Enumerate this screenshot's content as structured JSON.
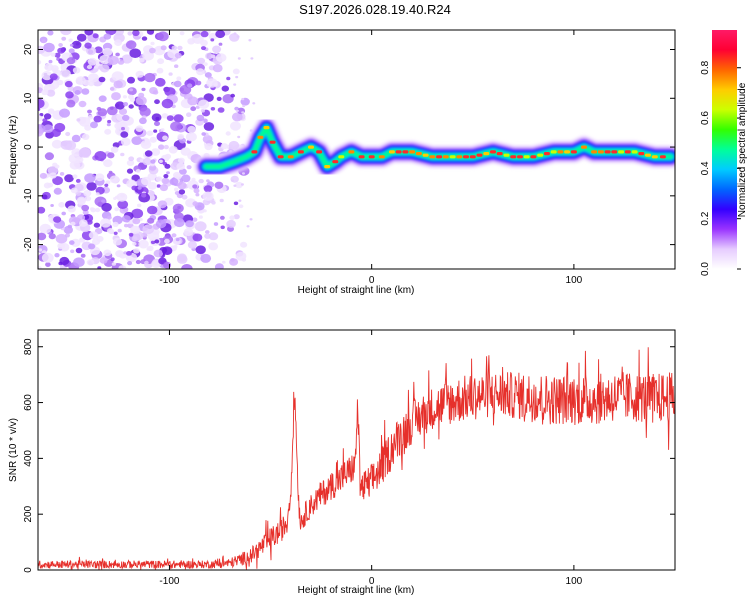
{
  "title": "S197.2026.028.19.40.R24",
  "chart_data": [
    {
      "type": "heatmap",
      "title": "S197.2026.028.19.40.R24",
      "xlabel": "Height of straight line (km)",
      "ylabel": "Frequency (Hz)",
      "xlim": [
        -165,
        150
      ],
      "ylim": [
        -25,
        24
      ],
      "xticks": [
        -100,
        0,
        100
      ],
      "yticks": [
        -20,
        -10,
        0,
        10,
        20
      ],
      "colorbar": {
        "label": "Normalized spectral amplitude",
        "range": [
          0.0,
          0.95
        ],
        "ticks": [
          "0.0",
          "0.2",
          "0.4",
          "0.6",
          "0.8"
        ],
        "colors": [
          "#ffffff",
          "#e6ccff",
          "#9933ff",
          "#3300ff",
          "#0066ff",
          "#00ccff",
          "#00ff99",
          "#33ff00",
          "#ccff00",
          "#ffcc00",
          "#ff6600",
          "#ff0033",
          "#ff1a66"
        ]
      },
      "ridge": {
        "x": [
          -82,
          -75,
          -68,
          -62,
          -58,
          -55,
          -52,
          -49,
          -45,
          -40,
          -35,
          -30,
          -26,
          -22,
          -18,
          -15,
          -10,
          -5,
          0,
          5,
          10,
          20,
          30,
          40,
          50,
          60,
          70,
          80,
          90,
          100,
          105,
          110,
          120,
          130,
          140,
          148
        ],
        "freq": [
          -4,
          -4,
          -3,
          -2,
          -1,
          2,
          4,
          1,
          -2,
          -2,
          -1,
          0,
          -1,
          -4,
          -3,
          -2,
          -1,
          -2,
          -2,
          -2,
          -1,
          -1,
          -2,
          -2,
          -2,
          -1,
          -2,
          -2,
          -1,
          -1,
          0,
          -1,
          -1,
          -1,
          -2,
          -2
        ]
      },
      "noise_region": [
        -165,
        -70
      ]
    },
    {
      "type": "line",
      "xlabel": "Height of straight line (km)",
      "ylabel": "SNR (10 * v/v)",
      "xlim": [
        -165,
        150
      ],
      "ylim": [
        0,
        860
      ],
      "xticks": [
        -100,
        0,
        100
      ],
      "yticks": [
        0,
        200,
        400,
        600,
        800
      ],
      "color": "#e6302b",
      "series": [
        {
          "name": "SNR",
          "x": [
            -165,
            -140,
            -120,
            -100,
            -80,
            -70,
            -60,
            -55,
            -50,
            -45,
            -42,
            -40,
            -39,
            -38,
            -37,
            -36,
            -35,
            -34,
            -30,
            -25,
            -20,
            -15,
            -10,
            -8,
            -7,
            -6,
            -5,
            -3,
            0,
            5,
            10,
            15,
            20,
            25,
            30,
            40,
            50,
            60,
            70,
            80,
            90,
            100,
            110,
            120,
            130,
            140,
            150
          ],
          "y": [
            20,
            20,
            20,
            20,
            20,
            25,
            50,
            80,
            110,
            140,
            170,
            280,
            480,
            640,
            420,
            230,
            170,
            190,
            230,
            270,
            300,
            330,
            360,
            380,
            600,
            390,
            290,
            300,
            320,
            370,
            440,
            490,
            530,
            555,
            580,
            605,
            620,
            630,
            625,
            620,
            610,
            610,
            610,
            620,
            620,
            615,
            620
          ],
          "noise_amp": [
            20,
            20,
            20,
            20,
            20,
            25,
            40,
            50,
            60,
            60,
            60,
            60,
            60,
            60,
            60,
            60,
            60,
            60,
            60,
            70,
            70,
            80,
            80,
            80,
            80,
            80,
            80,
            90,
            90,
            100,
            100,
            110,
            110,
            110,
            110,
            120,
            120,
            120,
            120,
            130,
            130,
            130,
            130,
            130,
            130,
            130,
            130
          ]
        }
      ]
    }
  ]
}
